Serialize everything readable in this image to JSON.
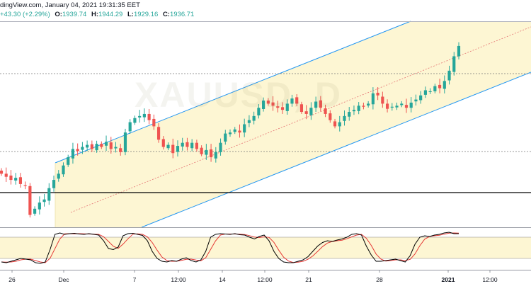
{
  "header": {
    "line1": "dingView.com, January 04, 2021 19:31:35 EET",
    "change": "+43.30 (+2.29%)",
    "o_label": "O:",
    "o_value": "1939.74",
    "h_label": "H:",
    "h_value": "1944.29",
    "l_label": "L:",
    "l_value": "1929.16",
    "c_label": "C:",
    "c_value": "1936.71"
  },
  "watermark": "XAUUSD, D",
  "colors": {
    "up": "#26a69a",
    "down": "#ef5350",
    "channel": "#2196f3",
    "channel_fill": "#fdf6d3",
    "midline": "#e57373",
    "stoch_k": "#000000",
    "stoch_d": "#e53935",
    "stoch_band": "#fdf6d3"
  },
  "chart_data": {
    "type": "candlestick",
    "symbol": "XAUUSD",
    "description": "Gold spot price, 4-hour candles inside an ascending channel with stochastic oscillator below",
    "x_tick_labels": [
      "26",
      "Dec",
      "7",
      "12:00",
      "14",
      "12:00",
      "21",
      "28",
      "2021",
      "12:00"
    ],
    "bold_tick_labels": [
      "2021"
    ],
    "last_candle": {
      "open": 1939.74,
      "high": 1944.29,
      "low": 1929.16,
      "close": 1936.71
    },
    "change": 43.3,
    "change_pct": 2.29,
    "price_series_approx": [
      1812,
      1809,
      1806,
      1808,
      1802,
      1800,
      1772,
      1778,
      1784,
      1787,
      1798,
      1806,
      1812,
      1820,
      1828,
      1836,
      1834,
      1838,
      1840,
      1836,
      1841,
      1838,
      1843,
      1836,
      1838,
      1833,
      1852,
      1862,
      1866,
      1868,
      1870,
      1864,
      1858,
      1845,
      1838,
      1840,
      1832,
      1839,
      1842,
      1838,
      1842,
      1836,
      1831,
      1835,
      1828,
      1833,
      1842,
      1851,
      1852,
      1855,
      1852,
      1860,
      1864,
      1868,
      1876,
      1883,
      1880,
      1878,
      1876,
      1874,
      1880,
      1885,
      1880,
      1872,
      1870,
      1876,
      1882,
      1876,
      1870,
      1864,
      1858,
      1862,
      1868,
      1872,
      1874,
      1878,
      1877,
      1880,
      1890,
      1888,
      1880,
      1875,
      1877,
      1878,
      1880,
      1876,
      1881,
      1884,
      1888,
      1893,
      1892,
      1897,
      1895,
      1902,
      1912,
      1926,
      1936
    ],
    "stochastic_k_approx": [
      10,
      8,
      12,
      16,
      20,
      18,
      16,
      8,
      6,
      10,
      45,
      88,
      92,
      88,
      90,
      91,
      89,
      88,
      90,
      88,
      86,
      70,
      48,
      45,
      52,
      84,
      90,
      91,
      88,
      85,
      70,
      40,
      20,
      12,
      10,
      14,
      12,
      18,
      22,
      14,
      10,
      16,
      40,
      80,
      88,
      90,
      89,
      88,
      90,
      87,
      86,
      80,
      75,
      82,
      86,
      70,
      40,
      20,
      10,
      8,
      8,
      12,
      16,
      25,
      40,
      55,
      65,
      70,
      68,
      72,
      75,
      80,
      88,
      90,
      86,
      55,
      30,
      12,
      12,
      14,
      16,
      18,
      14,
      10,
      28,
      60,
      80,
      84,
      82,
      86,
      88,
      92,
      94,
      90,
      90
    ],
    "stochastic_band": [
      20,
      80
    ],
    "annotations": [
      "Ascending channel (upper and lower parallel trendlines)",
      "Channel mid-line (dotted)",
      "Horizontal support/resistance lines"
    ]
  }
}
